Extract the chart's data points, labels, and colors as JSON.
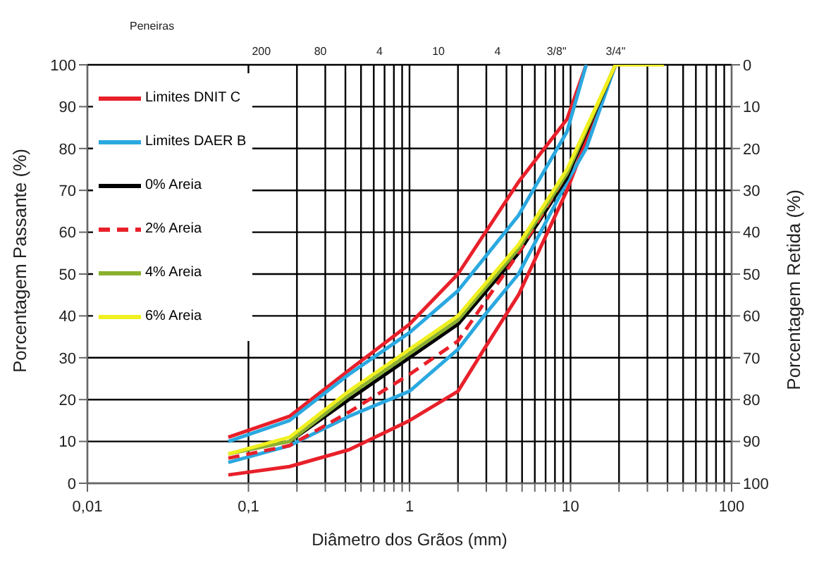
{
  "chart_data": {
    "type": "line",
    "xlabel": "Diâmetro dos Grãos (mm)",
    "ylabel": "Porcentagem Passante (%)",
    "y2label": "Porcentagem Retida (%)",
    "annotations": [
      "Peneiras",
      "200",
      "80",
      "4",
      "10",
      "4",
      "3/8\"",
      "3/4\""
    ],
    "log": "x",
    "grid": true,
    "legend": "top left",
    "marker": "none",
    "xlim": [
      0.01,
      100
    ],
    "xticks": [
      {
        "value": 0.01,
        "label": "0,01"
      },
      {
        "value": 0.1,
        "label": "0,1"
      },
      {
        "value": 0.2,
        "label": null
      },
      {
        "value": 0.3,
        "label": null
      },
      {
        "value": 0.4,
        "label": null
      },
      {
        "value": 0.5,
        "label": null
      },
      {
        "value": 0.6,
        "label": null
      },
      {
        "value": 0.7,
        "label": null
      },
      {
        "value": 0.8,
        "label": null
      },
      {
        "value": 0.9,
        "label": null
      },
      1,
      {
        "value": 2,
        "label": null
      },
      {
        "value": 3,
        "label": null
      },
      {
        "value": 4,
        "label": null
      },
      {
        "value": 5,
        "label": null
      },
      {
        "value": 6,
        "label": null
      },
      {
        "value": 7,
        "label": null
      },
      {
        "value": 8,
        "label": null
      },
      {
        "value": 9,
        "label": null
      },
      10,
      {
        "value": 20,
        "label": null
      },
      {
        "value": 30,
        "label": null
      },
      {
        "value": 40,
        "label": null
      },
      {
        "value": 50,
        "label": null
      },
      {
        "value": 60,
        "label": null
      },
      {
        "value": 70,
        "label": null
      },
      {
        "value": 80,
        "label": null
      },
      {
        "value": 90,
        "label": null
      },
      100
    ],
    "ylim": [
      0,
      100
    ],
    "yticks": [
      0,
      10,
      20,
      30,
      40,
      50,
      60,
      70,
      80,
      90,
      100
    ],
    "y2lim": [
      100,
      0
    ],
    "y2ticks": [
      0,
      10,
      20,
      30,
      40,
      50,
      60,
      70,
      80,
      90,
      100
    ],
    "series": [
      {
        "name": "Limites DNIT C",
        "color": "#e8202a",
        "line_style": "solid",
        "x": [
          0.075,
          0.18,
          0.42,
          1,
          2,
          4.75,
          9.5,
          12.5
        ],
        "values": [
          11,
          16,
          27,
          38,
          50,
          72,
          87,
          100
        ]
      },
      {
        "name": null,
        "color": "#e8202a",
        "line_style": "solid",
        "x": [
          0.075,
          0.18,
          0.42,
          1,
          2,
          2.9,
          4.75,
          9.5,
          19
        ],
        "values": [
          2,
          4,
          8,
          15,
          22,
          32,
          45,
          70,
          100
        ]
      },
      {
        "name": "Limites DAER B",
        "color": "#2aa8e0",
        "line_style": "solid",
        "x": [
          0.075,
          0.18,
          0.42,
          1,
          2,
          4.75,
          9.5,
          12.5
        ],
        "values": [
          10,
          15,
          26,
          36,
          46,
          64,
          84,
          100
        ]
      },
      {
        "name": null,
        "color": "#2aa8e0",
        "line_style": "solid",
        "x": [
          0.075,
          0.18,
          0.42,
          1,
          2,
          2.9,
          4.75,
          9.5,
          12.5,
          19
        ],
        "values": [
          5,
          9,
          16,
          22,
          32,
          40,
          50,
          72,
          80,
          100
        ]
      },
      {
        "name": "0% Areia",
        "color": "#000000",
        "line_style": "solid",
        "x": [
          0.18,
          0.42,
          1,
          2,
          4.75,
          9.5,
          19
        ],
        "values": [
          10,
          20,
          30,
          38,
          55,
          73,
          100
        ]
      },
      {
        "name": "2% Areia",
        "color": "#e8202a",
        "line_style": "dashed",
        "x": [
          0.075,
          0.18,
          0.42,
          1,
          2,
          4.75,
          9.5,
          19
        ],
        "values": [
          6,
          9,
          17,
          26,
          34,
          55,
          74,
          100
        ]
      },
      {
        "name": "4% Areia",
        "color": "#8ab030",
        "line_style": "solid",
        "x": [
          0.075,
          0.18,
          0.42,
          1,
          2,
          4.75,
          9.5,
          19
        ],
        "values": [
          7,
          10,
          21,
          31,
          39,
          56,
          74,
          100
        ]
      },
      {
        "name": "6% Areia",
        "color": "#f0f020",
        "line_style": "solid",
        "x": [
          0.075,
          0.18,
          0.42,
          1,
          2,
          4.75,
          9.5,
          19,
          38
        ],
        "values": [
          7,
          11,
          22,
          32,
          40,
          57,
          75,
          100,
          100
        ]
      }
    ]
  }
}
